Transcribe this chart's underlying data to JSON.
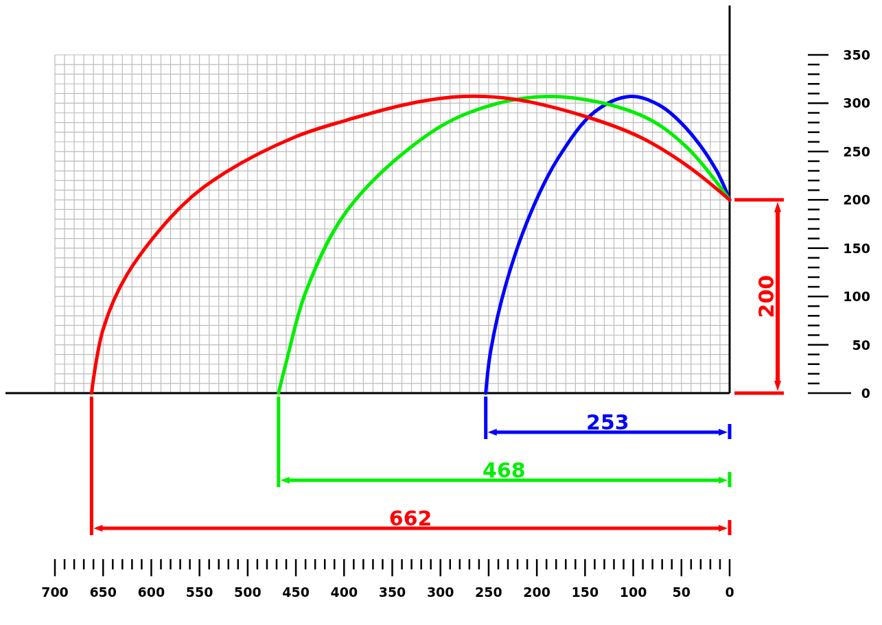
{
  "chart_data": {
    "type": "line",
    "xlim": [
      700,
      0
    ],
    "y2lim": [
      0,
      350
    ],
    "xticks": [
      700,
      {
        "value": 690,
        "label": null
      },
      {
        "value": 680,
        "label": null
      },
      {
        "value": 670,
        "label": null
      },
      {
        "value": 660,
        "label": null
      },
      650,
      {
        "value": 640,
        "label": null
      },
      {
        "value": 630,
        "label": null
      },
      {
        "value": 620,
        "label": null
      },
      {
        "value": 610,
        "label": null
      },
      600,
      {
        "value": 590,
        "label": null
      },
      {
        "value": 580,
        "label": null
      },
      {
        "value": 570,
        "label": null
      },
      {
        "value": 560,
        "label": null
      },
      550,
      {
        "value": 540,
        "label": null
      },
      {
        "value": 530,
        "label": null
      },
      {
        "value": 520,
        "label": null
      },
      {
        "value": 510,
        "label": null
      },
      500,
      {
        "value": 490,
        "label": null
      },
      {
        "value": 480,
        "label": null
      },
      {
        "value": 470,
        "label": null
      },
      {
        "value": 460,
        "label": null
      },
      450,
      {
        "value": 440,
        "label": null
      },
      {
        "value": 430,
        "label": null
      },
      {
        "value": 420,
        "label": null
      },
      {
        "value": 410,
        "label": null
      },
      400,
      {
        "value": 390,
        "label": null
      },
      {
        "value": 380,
        "label": null
      },
      {
        "value": 370,
        "label": null
      },
      {
        "value": 360,
        "label": null
      },
      350,
      {
        "value": 340,
        "label": null
      },
      {
        "value": 330,
        "label": null
      },
      {
        "value": 320,
        "label": null
      },
      {
        "value": 310,
        "label": null
      },
      300,
      {
        "value": 290,
        "label": null
      },
      {
        "value": 280,
        "label": null
      },
      {
        "value": 270,
        "label": null
      },
      {
        "value": 260,
        "label": null
      },
      250,
      {
        "value": 240,
        "label": null
      },
      {
        "value": 230,
        "label": null
      },
      {
        "value": 220,
        "label": null
      },
      {
        "value": 210,
        "label": null
      },
      200,
      {
        "value": 190,
        "label": null
      },
      {
        "value": 180,
        "label": null
      },
      {
        "value": 170,
        "label": null
      },
      {
        "value": 160,
        "label": null
      },
      150,
      {
        "value": 140,
        "label": null
      },
      {
        "value": 130,
        "label": null
      },
      {
        "value": 120,
        "label": null
      },
      {
        "value": 110,
        "label": null
      },
      100,
      {
        "value": 90,
        "label": null
      },
      {
        "value": 80,
        "label": null
      },
      {
        "value": 70,
        "label": null
      },
      {
        "value": 60,
        "label": null
      },
      50,
      {
        "value": 40,
        "label": null
      },
      {
        "value": 30,
        "label": null
      },
      {
        "value": 20,
        "label": null
      },
      {
        "value": 10,
        "label": null
      },
      0
    ],
    "y2ticks": [
      0,
      {
        "value": 10,
        "label": null
      },
      {
        "value": 20,
        "label": null
      },
      {
        "value": 30,
        "label": null
      },
      {
        "value": 40,
        "label": null
      },
      50,
      {
        "value": 60,
        "label": null
      },
      {
        "value": 70,
        "label": null
      },
      {
        "value": 80,
        "label": null
      },
      {
        "value": 90,
        "label": null
      },
      100,
      {
        "value": 110,
        "label": null
      },
      {
        "value": 120,
        "label": null
      },
      {
        "value": 130,
        "label": null
      },
      {
        "value": 140,
        "label": null
      },
      150,
      {
        "value": 160,
        "label": null
      },
      {
        "value": 170,
        "label": null
      },
      {
        "value": 180,
        "label": null
      },
      {
        "value": 190,
        "label": null
      },
      200,
      {
        "value": 210,
        "label": null
      },
      {
        "value": 220,
        "label": null
      },
      {
        "value": 230,
        "label": null
      },
      {
        "value": 240,
        "label": null
      },
      250,
      {
        "value": 260,
        "label": null
      },
      {
        "value": 270,
        "label": null
      },
      {
        "value": 280,
        "label": null
      },
      {
        "value": 290,
        "label": null
      },
      300,
      {
        "value": 310,
        "label": null
      },
      {
        "value": 320,
        "label": null
      },
      {
        "value": 330,
        "label": null
      },
      {
        "value": 340,
        "label": null
      },
      350
    ],
    "grid": true,
    "series": [
      {
        "axis": "y2",
        "color": "#0000ff",
        "x": [
          0,
          14,
          45,
          73,
          103,
          140,
          178,
          207,
          232,
          248,
          253
        ],
        "values": [
          200,
          231,
          274,
          298,
          307,
          291,
          243,
          185,
          113,
          43,
          0
        ]
      },
      {
        "axis": "y2",
        "color": "#00ee00",
        "x": [
          0,
          45,
          93,
          187,
          271,
          330,
          399,
          440,
          459,
          468
        ],
        "values": [
          200,
          255,
          288,
          307,
          290,
          255,
          186,
          104,
          36,
          0
        ]
      },
      {
        "axis": "y2",
        "color": "#ff0000",
        "x": [
          0,
          45,
          93,
          152,
          223,
          276,
          330,
          399,
          451,
          522,
          568,
          625,
          650,
          662
        ],
        "values": [
          200,
          236,
          265,
          287,
          304,
          307,
          300,
          282,
          265,
          229,
          194,
          123,
          66,
          0
        ]
      }
    ],
    "annotations": [
      "253",
      "468",
      "662",
      "200"
    ]
  }
}
